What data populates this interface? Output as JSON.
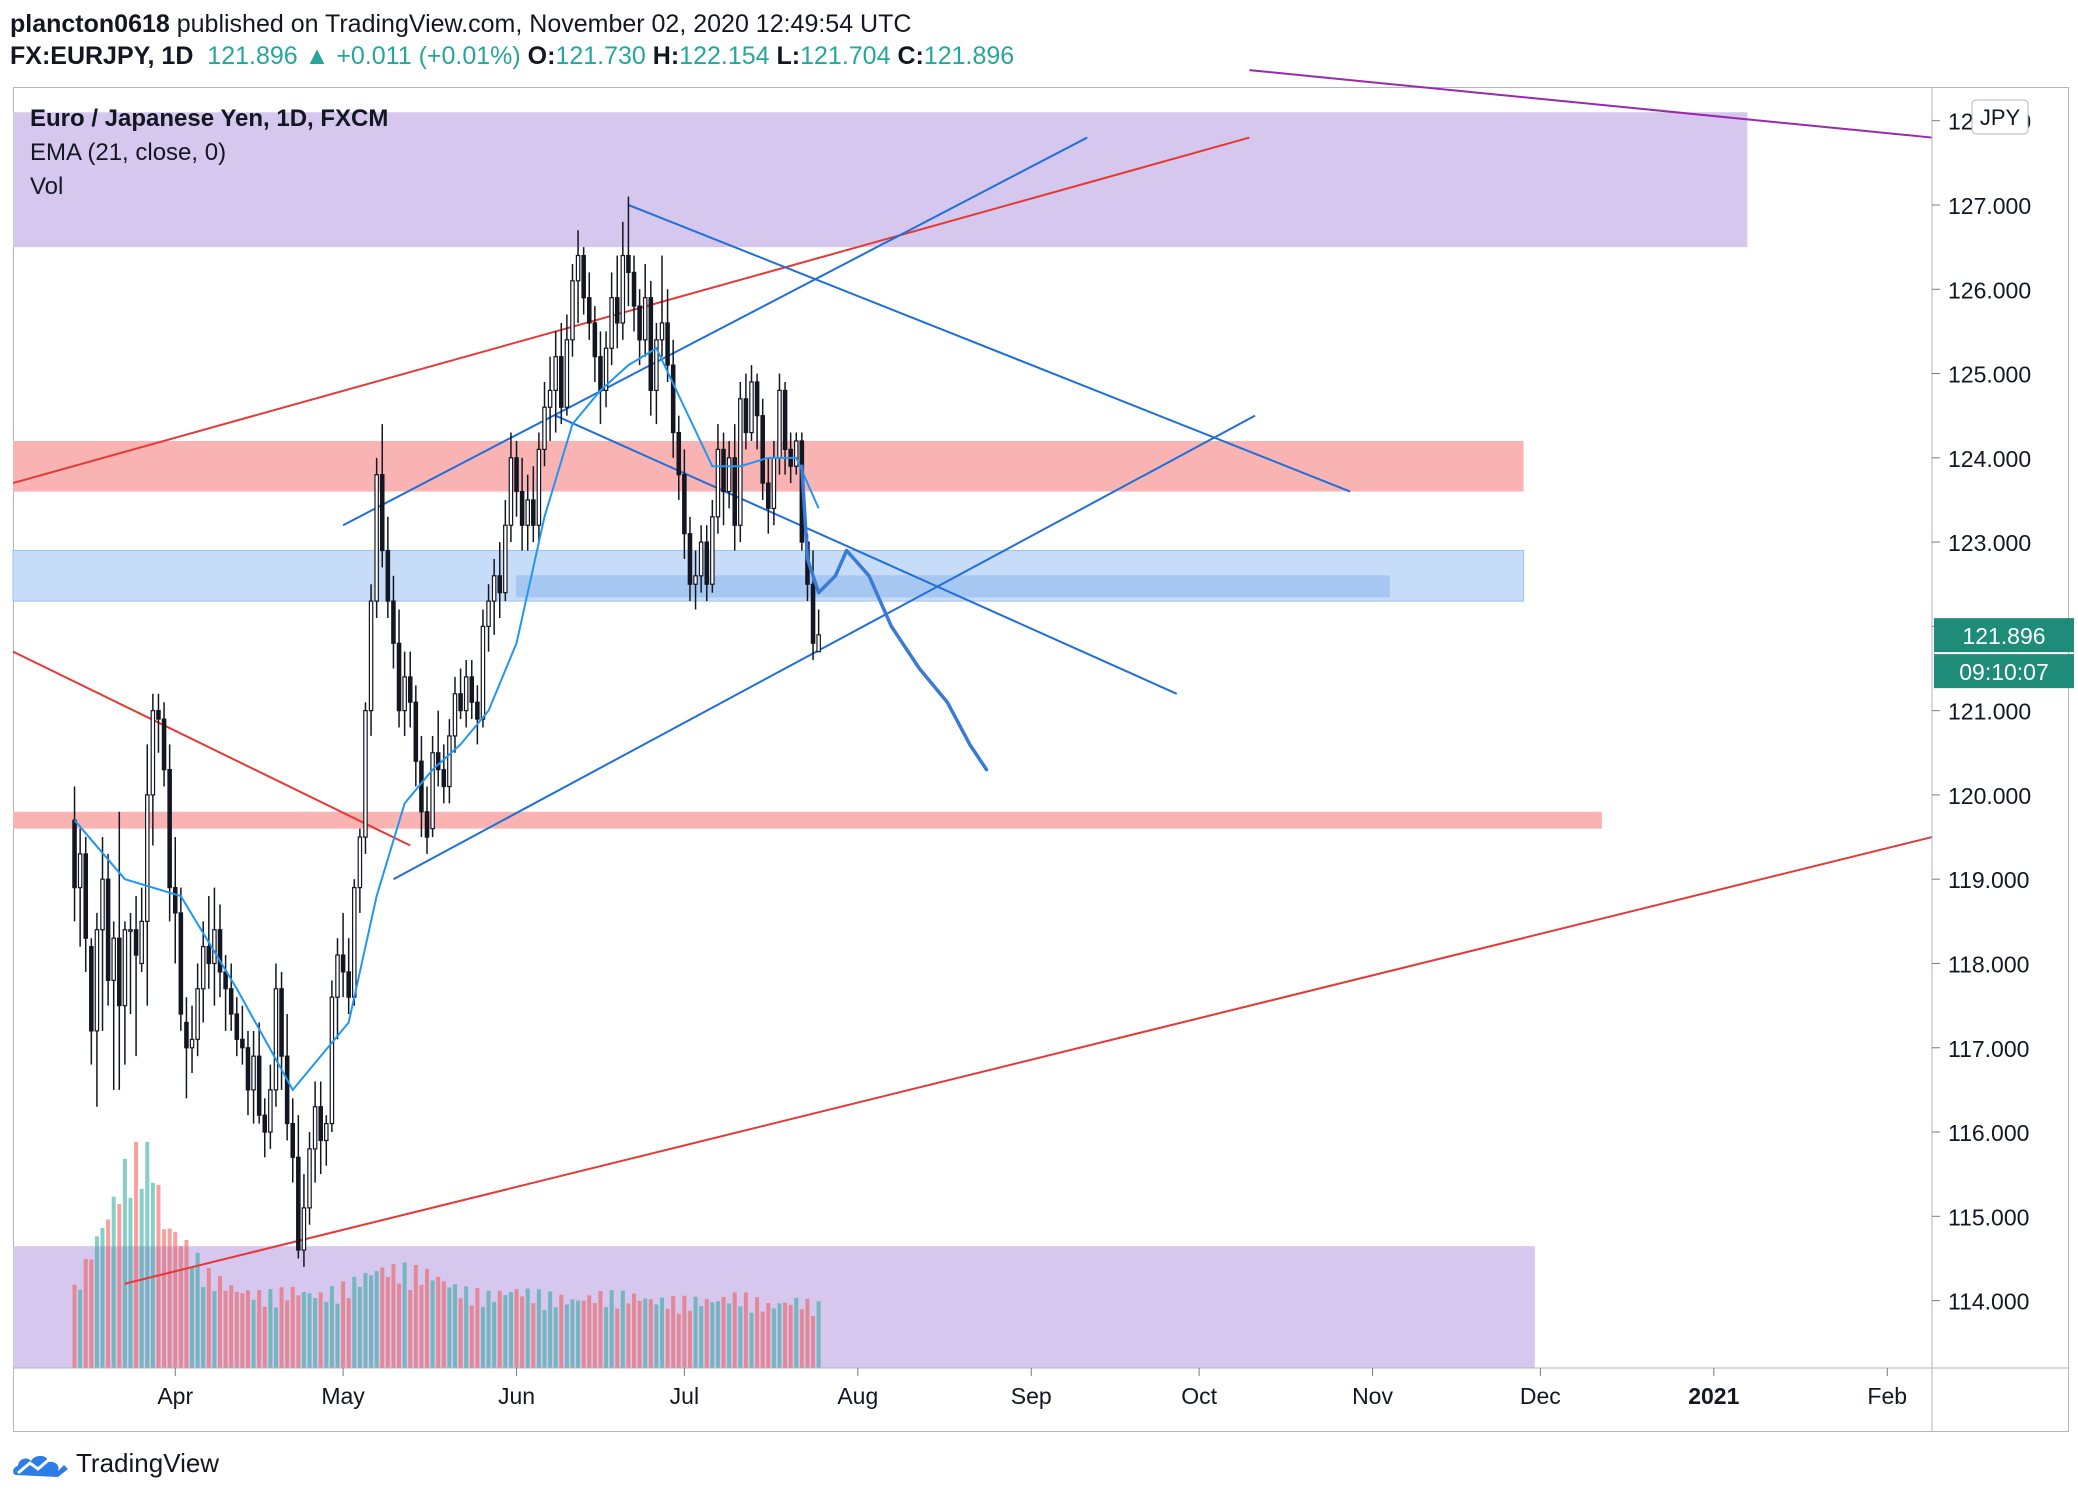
{
  "header": {
    "author": "plancton0618",
    "published_text": " published on TradingView.com, November 02, 2020 12:49:54 UTC",
    "symbol": "FX:EURJPY, 1D",
    "last": "121.896",
    "change_arrow": "▲",
    "change": "+0.011 (+0.01%)",
    "o_label": "O:",
    "o_value": "121.730",
    "h_label": "H:",
    "h_value": "122.154",
    "l_label": "L:",
    "l_value": "121.704",
    "c_label": "C:",
    "c_value": "121.896"
  },
  "legend": {
    "title": "Euro / Japanese Yen, 1D, FXCM",
    "indicator": "EMA (21, close, 0)",
    "volume": "Vol"
  },
  "currency_badge": "JPY",
  "price_label": "121.896",
  "countdown_label": "09:10:07",
  "footer": {
    "brand": "TradingView"
  },
  "colors": {
    "up": "#26a69a",
    "down": "#ef5350",
    "candle": "#131722",
    "ema": "#2196f3",
    "trendline_blue": "#1e6fd9",
    "trendline_red": "#e53935",
    "zone_purple": "#d6c7ee",
    "zone_red": "#f9b3b3",
    "zone_blue": "#c7dcf8",
    "purple_line": "#9c27b0",
    "price_tag": "#1f8c7a"
  },
  "chart_data": {
    "type": "candlestick",
    "title": "Euro / Japanese Yen, 1D, FXCM",
    "symbol": "EURJPY",
    "ylim": [
      113.2,
      128.4
    ],
    "y_ticks": [
      114,
      115,
      116,
      117,
      118,
      119,
      120,
      121,
      122,
      123,
      124,
      125,
      126,
      127,
      128
    ],
    "x_ticks": [
      "Apr",
      "May",
      "Jun",
      "Jul",
      "Aug",
      "Sep",
      "Oct",
      "Nov",
      "Dec",
      "2021",
      "Feb"
    ],
    "x_tick_days": [
      19,
      49,
      80,
      110,
      141,
      172,
      202,
      233,
      263,
      294,
      325
    ],
    "x_range_days": [
      -10,
      333
    ],
    "ohlc_day0": "2020-03-13",
    "candles_ohlc": [
      [
        1,
        119.7,
        120.1,
        118.5,
        118.9
      ],
      [
        2,
        118.9,
        119.6,
        118.2,
        119.3
      ],
      [
        3,
        119.3,
        119.5,
        117.9,
        118.3
      ],
      [
        4,
        118.2,
        118.3,
        116.8,
        117.2
      ],
      [
        5,
        117.2,
        118.6,
        116.3,
        118.4
      ],
      [
        6,
        118.4,
        119.5,
        117.2,
        119.0
      ],
      [
        7,
        119.0,
        119.3,
        117.5,
        117.8
      ],
      [
        8,
        117.8,
        118.5,
        116.5,
        118.3
      ],
      [
        9,
        118.3,
        119.8,
        116.5,
        117.5
      ],
      [
        10,
        117.5,
        118.5,
        116.8,
        118.4
      ],
      [
        11,
        118.4,
        118.6,
        117.4,
        118.4
      ],
      [
        12,
        118.4,
        118.8,
        116.9,
        118.1
      ],
      [
        13,
        118.0,
        118.9,
        117.9,
        118.5
      ],
      [
        14,
        118.5,
        120.6,
        117.5,
        120.0
      ],
      [
        15,
        120.0,
        121.2,
        119.4,
        121.0
      ],
      [
        16,
        121.0,
        121.2,
        120.5,
        120.9
      ],
      [
        17,
        120.9,
        121.1,
        120.1,
        120.3
      ],
      [
        18,
        120.3,
        120.6,
        118.5,
        118.9
      ],
      [
        19,
        118.9,
        119.5,
        118.0,
        118.6
      ],
      [
        20,
        118.6,
        118.9,
        117.2,
        117.4
      ],
      [
        21,
        117.3,
        117.6,
        116.4,
        117.0
      ],
      [
        22,
        117.0,
        117.5,
        116.7,
        117.1
      ],
      [
        23,
        117.1,
        118.0,
        116.9,
        117.7
      ],
      [
        24,
        117.7,
        118.5,
        117.3,
        118.2
      ],
      [
        25,
        118.2,
        118.8,
        117.7,
        118.0
      ],
      [
        26,
        118.0,
        118.9,
        117.5,
        118.4
      ],
      [
        27,
        118.4,
        118.7,
        117.6,
        117.9
      ],
      [
        28,
        117.9,
        118.1,
        117.2,
        117.7
      ],
      [
        29,
        117.7,
        118.0,
        117.2,
        117.4
      ],
      [
        30,
        117.4,
        117.6,
        116.9,
        117.1
      ],
      [
        31,
        117.1,
        117.5,
        116.8,
        117.0
      ],
      [
        32,
        117.0,
        117.2,
        116.2,
        116.5
      ],
      [
        33,
        116.5,
        117.2,
        116.1,
        116.9
      ],
      [
        34,
        116.9,
        117.3,
        116.1,
        116.2
      ],
      [
        35,
        116.2,
        116.4,
        115.7,
        116.0
      ],
      [
        36,
        116.0,
        116.8,
        115.8,
        116.5
      ],
      [
        37,
        116.5,
        118.0,
        116.3,
        117.7
      ],
      [
        38,
        117.7,
        117.9,
        116.5,
        116.9
      ],
      [
        39,
        116.9,
        117.4,
        115.9,
        116.1
      ],
      [
        40,
        116.1,
        116.4,
        115.4,
        115.7
      ],
      [
        41,
        115.7,
        116.2,
        114.5,
        114.6
      ],
      [
        42,
        114.6,
        115.5,
        114.4,
        115.1
      ],
      [
        43,
        115.1,
        116.0,
        114.9,
        115.8
      ],
      [
        44,
        115.8,
        116.6,
        115.4,
        116.3
      ],
      [
        45,
        116.3,
        116.6,
        115.5,
        115.9
      ],
      [
        46,
        115.9,
        116.2,
        115.6,
        116.1
      ],
      [
        47,
        116.1,
        117.8,
        116.0,
        117.6
      ],
      [
        48,
        117.6,
        118.3,
        117.1,
        118.1
      ],
      [
        49,
        118.1,
        118.6,
        117.6,
        117.9
      ],
      [
        50,
        117.9,
        118.3,
        117.4,
        117.6
      ],
      [
        51,
        117.6,
        119.0,
        117.5,
        118.9
      ],
      [
        52,
        118.9,
        119.6,
        118.6,
        119.5
      ],
      [
        53,
        119.5,
        121.1,
        119.3,
        121.0
      ],
      [
        54,
        121.0,
        122.5,
        120.7,
        122.3
      ],
      [
        55,
        122.3,
        124.0,
        122.1,
        123.8
      ],
      [
        56,
        123.8,
        124.4,
        122.7,
        122.9
      ],
      [
        57,
        122.9,
        123.3,
        122.1,
        122.3
      ],
      [
        58,
        122.3,
        122.6,
        121.5,
        121.8
      ],
      [
        59,
        121.8,
        122.2,
        120.8,
        121.0
      ],
      [
        60,
        121.0,
        121.7,
        120.7,
        121.4
      ],
      [
        61,
        121.4,
        121.7,
        120.8,
        121.1
      ],
      [
        62,
        121.1,
        121.3,
        120.1,
        120.4
      ],
      [
        63,
        120.4,
        120.7,
        119.5,
        119.8
      ],
      [
        64,
        119.8,
        120.1,
        119.3,
        119.5
      ],
      [
        65,
        119.6,
        120.7,
        119.5,
        120.5
      ],
      [
        66,
        120.5,
        121.0,
        120.1,
        120.3
      ],
      [
        67,
        120.3,
        120.6,
        119.9,
        120.1
      ],
      [
        68,
        120.1,
        120.9,
        119.9,
        120.7
      ],
      [
        69,
        120.7,
        121.4,
        120.5,
        121.2
      ],
      [
        70,
        121.2,
        121.5,
        120.9,
        121.0
      ],
      [
        71,
        121.0,
        121.6,
        120.8,
        121.4
      ],
      [
        72,
        121.4,
        121.6,
        120.9,
        121.1
      ],
      [
        73,
        121.1,
        121.3,
        120.6,
        120.9
      ],
      [
        74,
        120.9,
        122.2,
        120.8,
        122.0
      ],
      [
        75,
        122.0,
        122.5,
        121.7,
        122.3
      ],
      [
        76,
        122.3,
        122.8,
        121.9,
        122.6
      ],
      [
        77,
        122.6,
        123.0,
        122.1,
        122.4
      ],
      [
        78,
        122.4,
        123.5,
        122.3,
        123.2
      ],
      [
        79,
        123.2,
        124.3,
        123.0,
        124.0
      ],
      [
        80,
        124.0,
        124.2,
        123.3,
        123.6
      ],
      [
        81,
        123.6,
        124.0,
        122.9,
        123.2
      ],
      [
        82,
        123.2,
        123.8,
        122.9,
        123.5
      ],
      [
        83,
        123.5,
        123.9,
        123.0,
        123.2
      ],
      [
        84,
        123.2,
        124.3,
        123.0,
        124.1
      ],
      [
        85,
        124.1,
        124.9,
        123.9,
        124.6
      ],
      [
        86,
        124.6,
        125.2,
        124.2,
        124.8
      ],
      [
        87,
        124.8,
        125.5,
        124.3,
        125.2
      ],
      [
        88,
        125.2,
        125.6,
        124.4,
        124.6
      ],
      [
        89,
        124.6,
        125.7,
        124.5,
        125.4
      ],
      [
        90,
        125.4,
        126.3,
        125.2,
        126.1
      ],
      [
        91,
        126.1,
        126.7,
        125.6,
        126.4
      ],
      [
        92,
        126.4,
        126.5,
        125.7,
        125.9
      ],
      [
        93,
        125.9,
        126.2,
        125.4,
        125.6
      ],
      [
        94,
        125.6,
        125.8,
        124.9,
        125.2
      ],
      [
        95,
        125.2,
        125.5,
        124.4,
        124.8
      ],
      [
        96,
        124.8,
        125.5,
        124.6,
        125.3
      ],
      [
        97,
        125.3,
        126.2,
        125.1,
        125.9
      ],
      [
        98,
        125.9,
        126.4,
        125.3,
        125.6
      ],
      [
        99,
        125.6,
        126.8,
        125.4,
        126.4
      ],
      [
        100,
        126.4,
        127.1,
        125.8,
        126.2
      ],
      [
        101,
        126.2,
        126.4,
        125.5,
        125.8
      ],
      [
        102,
        125.8,
        126.0,
        125.1,
        125.4
      ],
      [
        103,
        125.4,
        126.3,
        125.2,
        125.9
      ],
      [
        104,
        125.9,
        126.1,
        124.5,
        124.8
      ],
      [
        105,
        124.8,
        125.6,
        124.4,
        125.4
      ],
      [
        106,
        125.4,
        126.4,
        125.2,
        125.6
      ],
      [
        107,
        125.6,
        126.0,
        124.9,
        125.1
      ],
      [
        108,
        125.1,
        125.4,
        124.0,
        124.3
      ],
      [
        109,
        124.3,
        124.5,
        123.5,
        123.8
      ],
      [
        110,
        123.8,
        124.1,
        122.8,
        123.1
      ],
      [
        111,
        123.1,
        123.3,
        122.3,
        122.5
      ],
      [
        112,
        122.5,
        122.9,
        122.2,
        122.6
      ],
      [
        113,
        122.6,
        123.2,
        122.4,
        123.0
      ],
      [
        114,
        123.0,
        123.2,
        122.3,
        122.5
      ],
      [
        115,
        122.5,
        123.5,
        122.4,
        123.3
      ],
      [
        116,
        123.3,
        124.4,
        123.1,
        124.1
      ],
      [
        117,
        124.1,
        124.3,
        123.2,
        123.6
      ],
      [
        118,
        123.6,
        124.2,
        123.4,
        124.0
      ],
      [
        119,
        124.0,
        124.4,
        122.9,
        123.2
      ],
      [
        120,
        123.2,
        124.9,
        123.0,
        124.7
      ],
      [
        121,
        124.7,
        125.0,
        124.1,
        124.3
      ],
      [
        122,
        124.3,
        125.1,
        124.2,
        124.9
      ],
      [
        123,
        124.9,
        125.0,
        124.1,
        124.5
      ],
      [
        124,
        124.5,
        124.7,
        123.5,
        123.7
      ],
      [
        125,
        123.7,
        124.0,
        123.1,
        123.4
      ],
      [
        126,
        123.4,
        124.2,
        123.2,
        124.0
      ],
      [
        127,
        124.0,
        125.0,
        123.8,
        124.8
      ],
      [
        128,
        124.8,
        124.9,
        123.8,
        124.1
      ],
      [
        129,
        124.1,
        124.3,
        123.7,
        123.9
      ],
      [
        130,
        123.9,
        124.3,
        123.8,
        124.2
      ],
      [
        131,
        124.2,
        124.3,
        122.9,
        123.0
      ],
      [
        132,
        123.0,
        123.1,
        122.3,
        122.5
      ],
      [
        133,
        122.5,
        122.9,
        121.6,
        121.8
      ],
      [
        134,
        121.7,
        122.2,
        121.7,
        121.9
      ]
    ],
    "series": [
      {
        "type": "line",
        "indicator": "EMA (21, close, 0)",
        "x": [
          1,
          10,
          20,
          30,
          40,
          50,
          55,
          60,
          65,
          70,
          75,
          80,
          85,
          90,
          95,
          100,
          105,
          110,
          115,
          120,
          125,
          130,
          134
        ],
        "y": [
          119.7,
          119.0,
          118.8,
          117.7,
          116.5,
          117.3,
          118.8,
          119.9,
          120.3,
          120.6,
          121.0,
          121.8,
          123.3,
          124.4,
          124.8,
          125.1,
          125.3,
          124.6,
          123.9,
          123.9,
          124.0,
          124.0,
          123.4
        ]
      },
      {
        "type": "bar",
        "name": "Vol",
        "x": [
          1,
          5,
          8,
          10,
          13,
          15,
          17,
          20,
          25,
          30,
          35,
          40,
          45,
          50,
          55,
          60,
          65,
          70,
          75,
          80,
          85,
          90,
          95,
          100,
          105,
          110,
          115,
          120,
          125,
          130,
          134
        ],
        "y": [
          15,
          25,
          32,
          38,
          42,
          40,
          28,
          25,
          18,
          15,
          14,
          15,
          14,
          16,
          19,
          19,
          18,
          15,
          14,
          15,
          14,
          13,
          14,
          14,
          13,
          13,
          13,
          14,
          12,
          13,
          12
        ],
        "ylim": [
          0,
          60
        ]
      }
    ],
    "annotations": [
      {
        "type": "zone",
        "color": "purple",
        "y": [
          126.5,
          128.1
        ],
        "x": [
          -10,
          300
        ]
      },
      {
        "type": "zone",
        "color": "red",
        "y": [
          123.6,
          124.2
        ],
        "x": [
          -10,
          260
        ]
      },
      {
        "type": "zone",
        "color": "blue",
        "y": [
          122.3,
          122.9
        ],
        "x": [
          -10,
          260
        ]
      },
      {
        "type": "zone",
        "color": "blue",
        "y": [
          122.35,
          122.6
        ],
        "x": [
          80,
          236
        ]
      },
      {
        "type": "zone",
        "color": "red",
        "y": [
          119.6,
          119.8
        ],
        "x": [
          -10,
          274
        ]
      },
      {
        "type": "zone",
        "color": "purple_volume",
        "x": [
          -10,
          262
        ]
      },
      {
        "type": "trendline",
        "color": "red",
        "x": [
          -10,
          211
        ],
        "y": [
          123.7,
          127.8
        ]
      },
      {
        "type": "trendline",
        "color": "red",
        "x": [
          -10,
          61
        ],
        "y": [
          121.7,
          119.4
        ]
      },
      {
        "type": "trendline",
        "color": "red",
        "x": [
          10,
          333
        ],
        "y": [
          114.2,
          119.5
        ]
      },
      {
        "type": "trendline",
        "color": "purple",
        "x": [
          211,
          333
        ],
        "y": [
          128.6,
          127.8
        ]
      },
      {
        "type": "trendline",
        "color": "blue",
        "x": [
          49,
          182
        ],
        "y": [
          123.2,
          127.8
        ]
      },
      {
        "type": "trendline",
        "color": "blue",
        "x": [
          58,
          212
        ],
        "y": [
          119.0,
          124.5
        ]
      },
      {
        "type": "trendline",
        "color": "blue",
        "x": [
          100,
          229
        ],
        "y": [
          127.0,
          123.6
        ]
      },
      {
        "type": "trendline",
        "color": "blue",
        "x": [
          87,
          198
        ],
        "y": [
          124.5,
          121.2
        ]
      },
      {
        "type": "projection",
        "color": "blue",
        "x": [
          131,
          132,
          134,
          137,
          139,
          143,
          147,
          152,
          157,
          161,
          164
        ],
        "y": [
          123.9,
          122.8,
          122.4,
          122.6,
          122.9,
          122.6,
          122.0,
          121.5,
          121.1,
          120.6,
          120.3
        ]
      }
    ]
  }
}
